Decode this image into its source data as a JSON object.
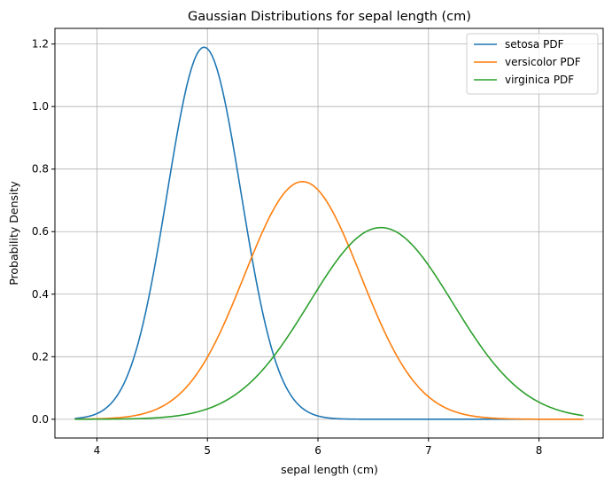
{
  "chart_data": {
    "type": "line",
    "title": "Gaussian Distributions for sepal length (cm)",
    "xlabel": "sepal length (cm)",
    "ylabel": "Probability Density",
    "xlim": [
      3.62,
      8.58
    ],
    "ylim": [
      -0.06,
      1.25
    ],
    "x_sample_range": [
      3.8,
      8.4
    ],
    "xticks": [
      4,
      5,
      6,
      7,
      8
    ],
    "yticks": [
      0.0,
      0.2,
      0.4,
      0.6,
      0.8,
      1.0,
      1.2
    ],
    "ytick_labels": [
      "0.0",
      "0.2",
      "0.4",
      "0.6",
      "0.8",
      "1.0",
      "1.2"
    ],
    "grid": true,
    "legend_position": "top-right",
    "series": [
      {
        "name": "setosa PDF",
        "color": "#1f77b4",
        "mean": 4.97,
        "std": 0.335,
        "peak": 1.19
      },
      {
        "name": "versicolor PDF",
        "color": "#ff7f0e",
        "mean": 5.86,
        "std": 0.525,
        "peak": 0.76
      },
      {
        "name": "virginica PDF",
        "color": "#2ca02c",
        "mean": 6.57,
        "std": 0.65,
        "peak": 0.613
      }
    ]
  }
}
